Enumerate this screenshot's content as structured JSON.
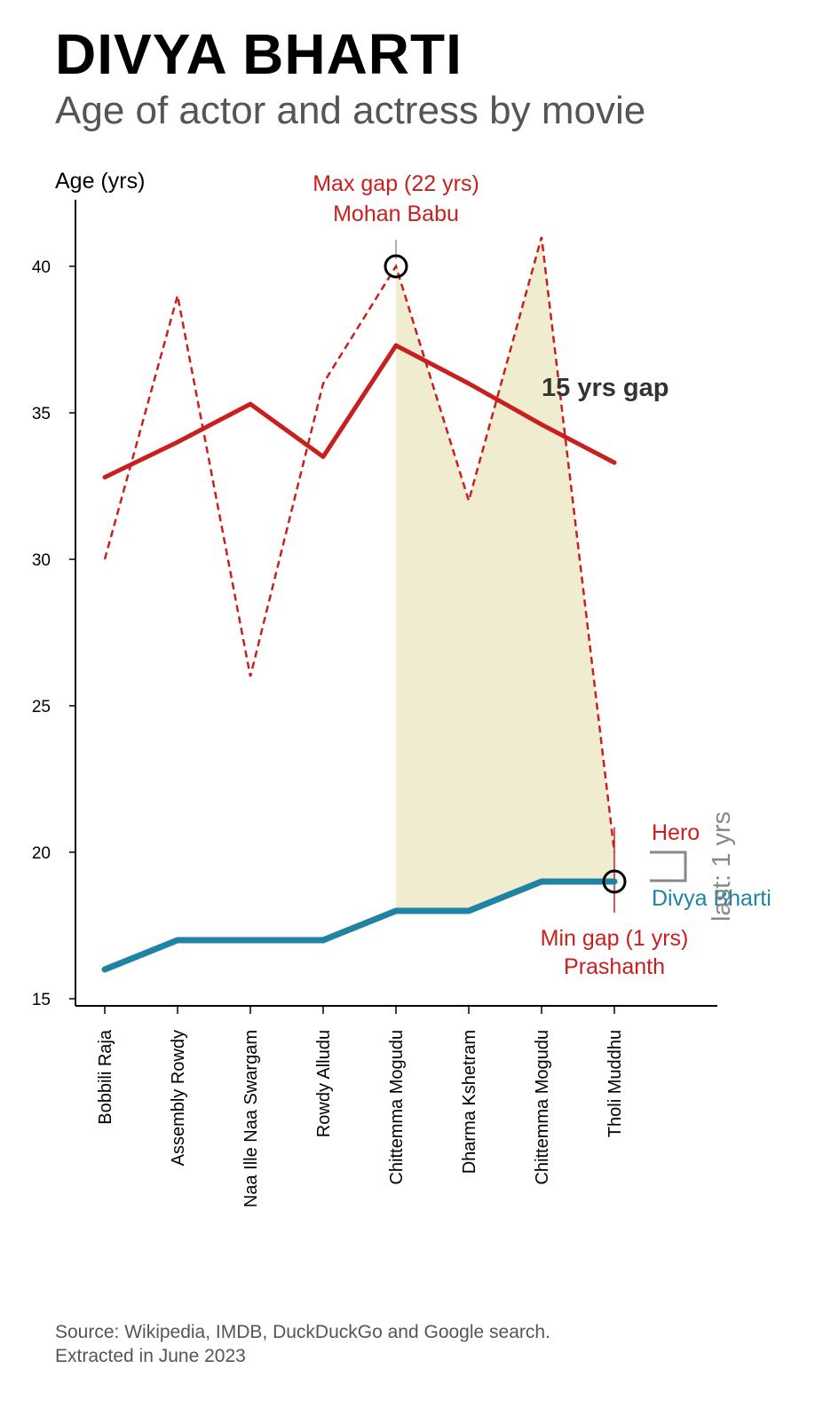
{
  "header": {
    "title": "DIVYA BHARTI",
    "subtitle": "Age of actor and actress by movie"
  },
  "footer": {
    "source": "Source: Wikipedia, IMDB, DuckDuckGo and Google search.",
    "extracted": "Extracted in June 2023"
  },
  "chart_data": {
    "type": "line",
    "ylabel": "Age (yrs)",
    "ylim": [
      15,
      42
    ],
    "yticks": [
      15,
      20,
      25,
      30,
      35,
      40
    ],
    "categories": [
      "Bobbili Raja",
      "Assembly Rowdy",
      "Naa Ille Naa Swargam",
      "Rowdy Alludu",
      "Chittemma Mogudu",
      "Dharma Kshetram",
      "Chittemma Mogudu",
      "Tholi Muddhu"
    ],
    "series": [
      {
        "name": "Hero",
        "style": "dashed",
        "color": "#c8201e",
        "values": [
          30,
          39,
          26,
          36,
          40,
          32,
          41,
          20
        ]
      },
      {
        "name": "",
        "style": "solid-trend",
        "color": "#c8201e",
        "values": [
          32.8,
          34.0,
          35.3,
          33.5,
          37.3,
          36.0,
          34.6,
          33.3
        ]
      },
      {
        "name": "Divya Bharti",
        "style": "solid",
        "color": "#1f83a3",
        "values": [
          16,
          17,
          17,
          17,
          18,
          18,
          19,
          19
        ]
      }
    ],
    "shaded_range": {
      "from_index": 4,
      "to_index": 7,
      "color": "#efecd0"
    },
    "annotations": {
      "max_gap": {
        "line1": "Max gap (22 yrs)",
        "line2": "Mohan Babu",
        "index": 4,
        "value": 40
      },
      "min_gap": {
        "line1": "Min gap (1 yrs)",
        "line2": "Prashanth",
        "index": 7,
        "value": 19
      },
      "gap_label": "15 yrs gap",
      "last_gap": "last: 1 yrs",
      "hero_label": "Hero",
      "heroine_label": "Divya Bharti"
    }
  }
}
